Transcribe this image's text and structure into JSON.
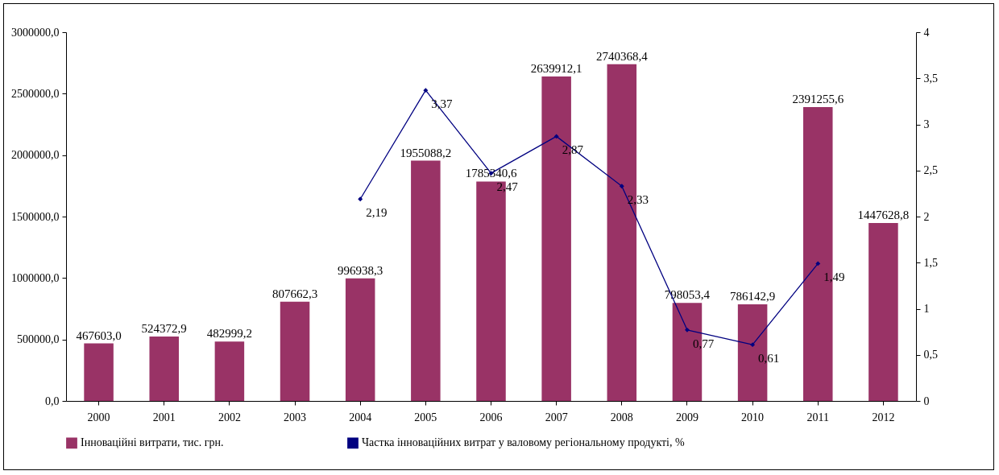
{
  "chart_data": {
    "type": "bar",
    "categories": [
      "2000",
      "2001",
      "2002",
      "2003",
      "2004",
      "2005",
      "2006",
      "2007",
      "2008",
      "2009",
      "2010",
      "2011",
      "2012"
    ],
    "series": [
      {
        "name": "Інноваційні витрати, тис. грн.",
        "color": "#993366",
        "values": [
          467603.0,
          524372.9,
          482999.2,
          807662.3,
          996938.3,
          1955088.2,
          1785340.6,
          2639912.1,
          2740368.4,
          798053.4,
          786142.9,
          2391255.6,
          1447628.8
        ],
        "value_labels": [
          "467603,0",
          "524372,9",
          "482999,2",
          "807662,3",
          "996938,3",
          "1955088,2",
          "1785340,6",
          "2639912,1",
          "2740368,4",
          "798053,4",
          "786142,9",
          "2391255,6",
          "1447628,8"
        ]
      },
      {
        "name": "Частка інноваційних витрат у валовому регіональному продукті, %",
        "type": "line",
        "axis": "y2",
        "color": "#000080",
        "marker": "diamond",
        "line_style": "solid",
        "values": [
          null,
          null,
          null,
          null,
          2.19,
          3.37,
          2.47,
          2.87,
          2.33,
          0.77,
          0.61,
          1.49,
          null
        ],
        "value_labels": [
          null,
          null,
          null,
          null,
          "2,19",
          "3,37",
          "2,47",
          "2,87",
          "2,33",
          "0,77",
          "0,61",
          "1,49",
          null
        ]
      }
    ],
    "ylim": [
      0,
      3000000
    ],
    "yticks": [
      {
        "value": 0,
        "label": "0,0"
      },
      {
        "value": 500000,
        "label": "500000,0"
      },
      {
        "value": 1000000,
        "label": "1000000,0"
      },
      {
        "value": 1500000,
        "label": "1500000,0"
      },
      {
        "value": 2000000,
        "label": "2000000,0"
      },
      {
        "value": 2500000,
        "label": "2500000,0"
      },
      {
        "value": 3000000,
        "label": "3000000,0"
      }
    ],
    "y2lim": [
      0,
      4
    ],
    "y2ticks": [
      0,
      {
        "value": 0.5,
        "label": "0,5"
      },
      1,
      {
        "value": 1.5,
        "label": "1,5"
      },
      2,
      {
        "value": 2.5,
        "label": "2,5"
      },
      3,
      {
        "value": 3.5,
        "label": "3,5"
      },
      4
    ],
    "grid": false,
    "legend": "bottom"
  }
}
